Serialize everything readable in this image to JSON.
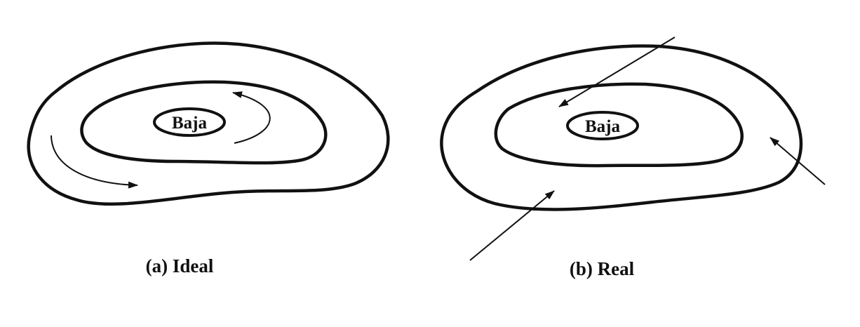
{
  "panels": [
    {
      "id": "a",
      "center_label": "Baja",
      "caption": "(a) Ideal"
    },
    {
      "id": "b",
      "center_label": "Baja",
      "caption": "(b) Real"
    }
  ],
  "colors": {
    "ink": "#111111",
    "background": "#ffffff"
  }
}
